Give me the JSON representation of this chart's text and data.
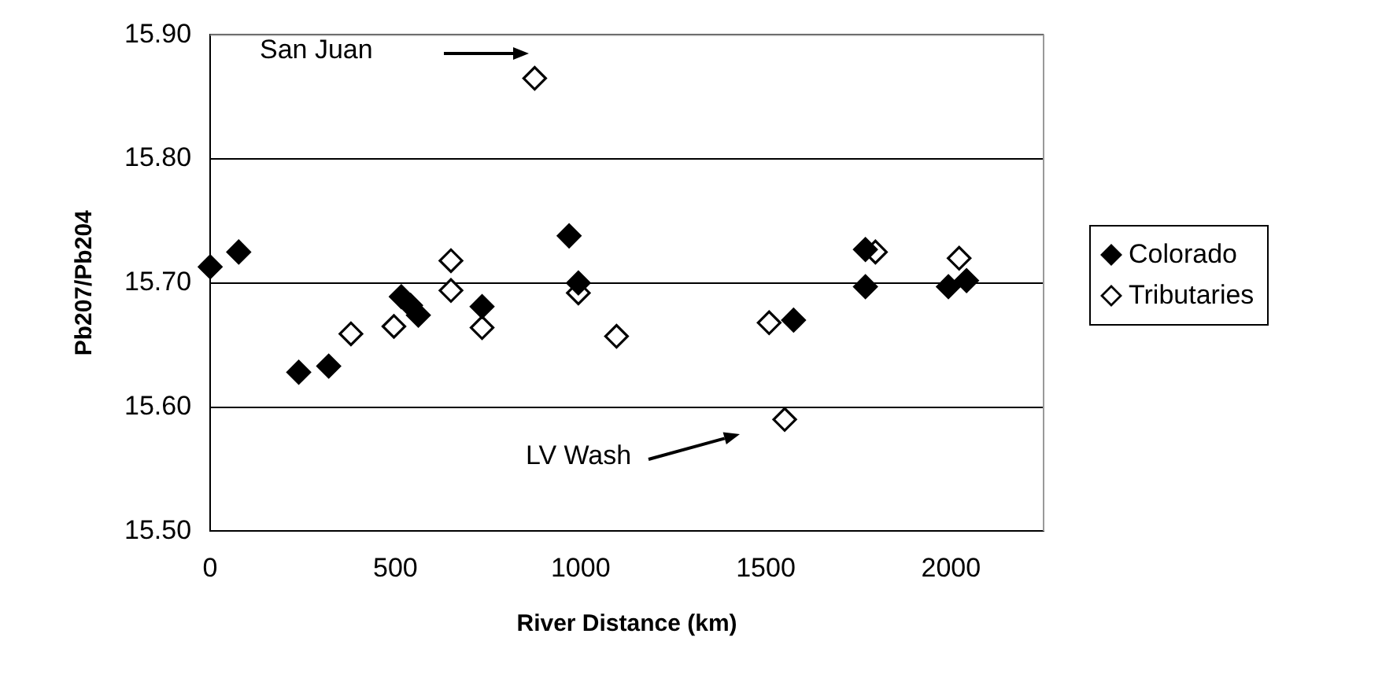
{
  "chart_data": {
    "type": "scatter",
    "xlabel": "River Distance (km)",
    "ylabel": "Pb207/Pb204",
    "xlim": [
      0,
      2250
    ],
    "xticks": [
      0,
      500,
      1000,
      1500,
      2000
    ],
    "ylim": [
      15.5,
      15.9
    ],
    "yticks": [
      {
        "value": 15.5,
        "label": "15.50"
      },
      {
        "value": 15.6,
        "label": "15.60"
      },
      {
        "value": 15.7,
        "label": "15.70"
      },
      {
        "value": 15.8,
        "label": "15.80"
      },
      {
        "value": 15.9,
        "label": "15.90"
      }
    ],
    "grid": "y",
    "legend": "right",
    "marker": "diamond",
    "series": [
      {
        "name": "Colorado",
        "color": "#000000",
        "x": [
          0,
          77,
          239,
          320,
          516,
          541,
          562,
          734,
          969,
          994,
          1575,
          1769,
          1769,
          1993,
          2042
        ],
        "values": [
          15.713,
          15.725,
          15.628,
          15.633,
          15.689,
          15.682,
          15.674,
          15.681,
          15.738,
          15.7,
          15.67,
          15.727,
          15.697,
          15.697,
          15.702
        ]
      },
      {
        "name": "Tributaries",
        "color": "#ffffff",
        "x": [
          876,
          380,
          496,
          650,
          650,
          734,
          994,
          1097,
          1509,
          1551,
          1796,
          2022
        ],
        "values": [
          15.865,
          15.659,
          15.665,
          15.718,
          15.694,
          15.664,
          15.692,
          15.657,
          15.668,
          15.59,
          15.725,
          15.72
        ]
      }
    ],
    "annotations": [
      "San Juan",
      "LV Wash"
    ]
  }
}
